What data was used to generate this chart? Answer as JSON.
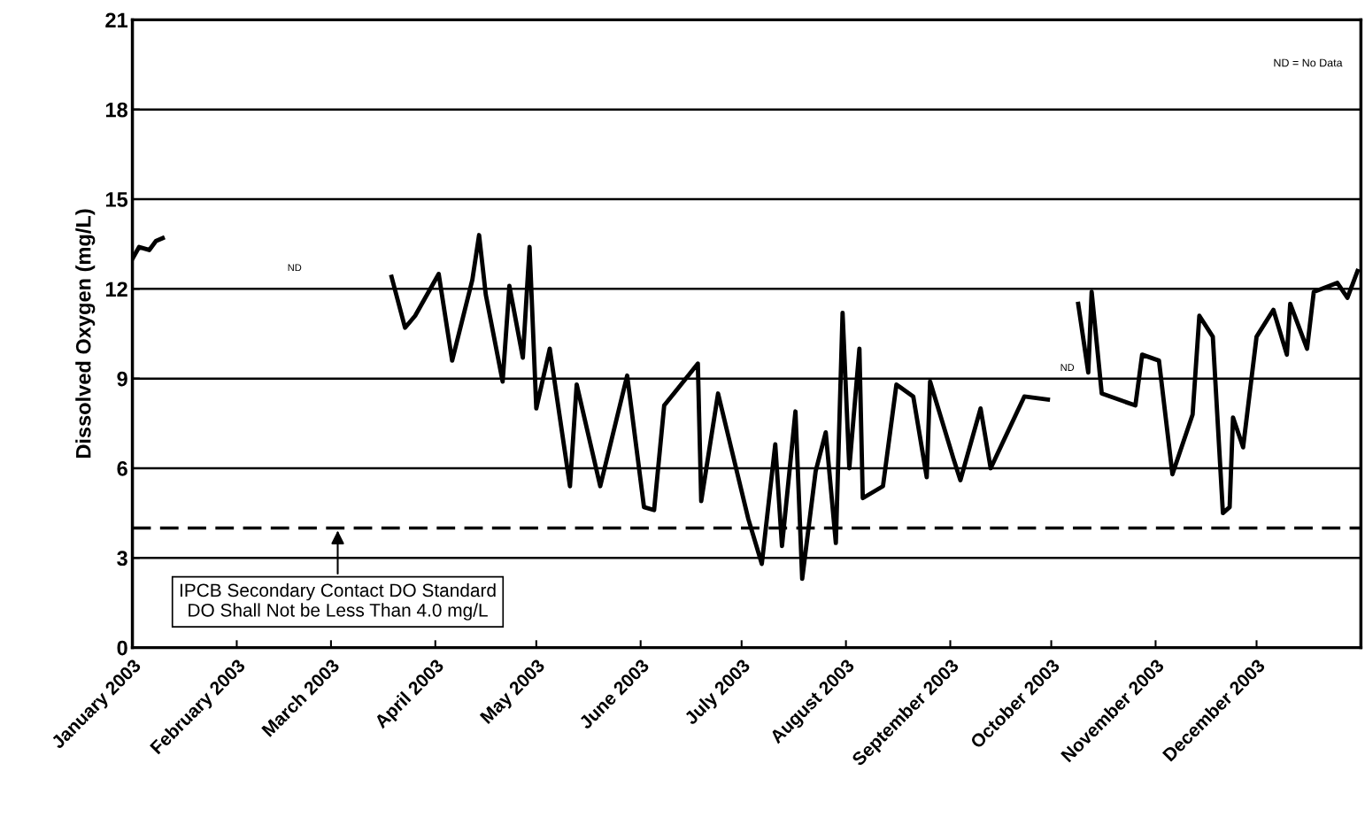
{
  "chart_data": {
    "type": "line",
    "ylabel": "Dissolved Oxygen (mg/L)",
    "x": [
      "2003-01-01",
      "2003-01-03",
      "2003-01-06",
      "2003-01-08",
      "2003-01-10",
      "2003-01-11",
      "2003-03-19",
      "2003-03-23",
      "2003-03-26",
      "2003-04-02",
      "2003-04-06",
      "2003-04-12",
      "2003-04-14",
      "2003-04-16",
      "2003-04-21",
      "2003-04-23",
      "2003-04-27",
      "2003-04-29",
      "2003-05-01",
      "2003-05-05",
      "2003-05-11",
      "2003-05-13",
      "2003-05-20",
      "2003-05-28",
      "2003-06-02",
      "2003-06-05",
      "2003-06-08",
      "2003-06-18",
      "2003-06-19",
      "2003-06-24",
      "2003-07-03",
      "2003-07-07",
      "2003-07-11",
      "2003-07-13",
      "2003-07-17",
      "2003-07-19",
      "2003-07-23",
      "2003-07-26",
      "2003-07-29",
      "2003-07-31",
      "2003-08-02",
      "2003-08-05",
      "2003-08-06",
      "2003-08-12",
      "2003-08-16",
      "2003-08-21",
      "2003-08-25",
      "2003-08-26",
      "2003-09-02",
      "2003-09-04",
      "2003-09-10",
      "2003-09-13",
      "2003-09-23",
      "2003-09-30",
      "2003-10-01",
      "2003-10-09",
      "2003-10-12",
      "2003-10-13",
      "2003-10-16",
      "2003-10-26",
      "2003-10-28",
      "2003-11-02",
      "2003-11-06",
      "2003-11-12",
      "2003-11-14",
      "2003-11-18",
      "2003-11-21",
      "2003-11-23",
      "2003-11-24",
      "2003-11-27",
      "2003-12-01",
      "2003-12-06",
      "2003-12-10",
      "2003-12-11",
      "2003-12-16",
      "2003-12-18",
      "2003-12-25",
      "2003-12-28",
      "2003-12-31"
    ],
    "series": [
      {
        "color": "#000000",
        "values": [
          13.0,
          13.4,
          13.3,
          13.6,
          13.7,
          null,
          12.4,
          10.7,
          11.1,
          12.5,
          9.6,
          12.3,
          13.8,
          11.8,
          8.9,
          12.1,
          9.7,
          13.4,
          8.0,
          10.0,
          5.4,
          8.8,
          5.4,
          9.1,
          4.7,
          4.6,
          8.1,
          9.5,
          4.9,
          8.5,
          4.3,
          2.8,
          6.8,
          3.4,
          7.9,
          2.3,
          5.9,
          7.2,
          3.5,
          11.2,
          6.0,
          10.0,
          5.0,
          5.4,
          8.8,
          8.4,
          5.7,
          8.9,
          6.3,
          5.6,
          8.0,
          6.0,
          8.4,
          8.3,
          null,
          11.5,
          9.2,
          11.9,
          8.5,
          8.1,
          9.8,
          9.6,
          5.8,
          7.8,
          11.1,
          10.4,
          4.5,
          4.7,
          7.7,
          6.7,
          10.4,
          11.3,
          9.8,
          11.5,
          10.0,
          11.9,
          12.2,
          11.7,
          12.6
        ]
      }
    ],
    "xlim": [
      "2003-01-01",
      "2004-01-01"
    ],
    "xticks": [
      {
        "value": "2003-01-01",
        "label": "January 2003"
      },
      {
        "value": "2003-02-01",
        "label": "February 2003"
      },
      {
        "value": "2003-03-01",
        "label": "March 2003"
      },
      {
        "value": "2003-04-01",
        "label": "April 2003"
      },
      {
        "value": "2003-05-01",
        "label": "May 2003"
      },
      {
        "value": "2003-06-01",
        "label": "June 2003"
      },
      {
        "value": "2003-07-01",
        "label": "July 2003"
      },
      {
        "value": "2003-08-01",
        "label": "August 2003"
      },
      {
        "value": "2003-09-01",
        "label": "September 2003"
      },
      {
        "value": "2003-10-01",
        "label": "October 2003"
      },
      {
        "value": "2003-11-01",
        "label": "November 2003"
      },
      {
        "value": "2003-12-01",
        "label": "December 2003"
      }
    ],
    "ylim": [
      0,
      21
    ],
    "yticks": [
      0,
      3,
      6,
      9,
      12,
      15,
      18,
      21
    ],
    "grid": "y",
    "ref_lines": [
      {
        "axis": "y",
        "value": 4.0,
        "color": "#000000",
        "line_style": "dashed"
      }
    ],
    "annotations": [
      {
        "text": "IPCB Secondary Contact DO Standard\nDO Shall Not be Less Than 4.0 mg/L",
        "x": "2003-03-03",
        "y": 4.0
      },
      "ND",
      "ND",
      "ND = No Data"
    ]
  }
}
